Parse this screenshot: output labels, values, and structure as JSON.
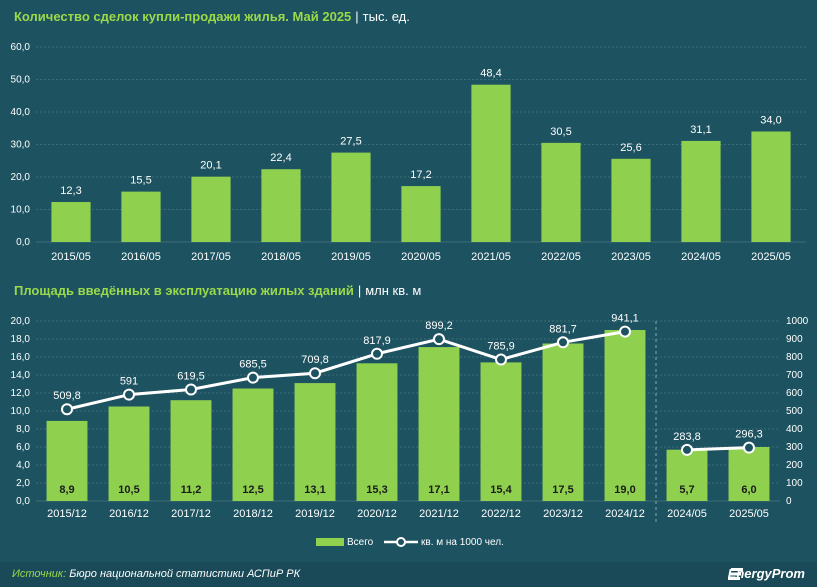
{
  "chart1_title": {
    "main": "Количество сделок купли-продажи жилья. Май 2025",
    "sep": "|",
    "unit": "тыс. ед."
  },
  "chart2_title": {
    "main": "Площадь введённых в эксплуатацию жилых зданий",
    "sep": "|",
    "unit": "млн кв. м"
  },
  "source": {
    "label": "Источник:",
    "text": "Бюро национальной статистики АСПиР РК"
  },
  "brand": "EnergyProm",
  "colors": {
    "background": "#1d5260",
    "bar": "#8fd14f",
    "title_accent": "#9ad94a",
    "line": "#ffffff"
  },
  "chart_data": [
    {
      "type": "bar",
      "categories": [
        "2015/05",
        "2016/05",
        "2017/05",
        "2018/05",
        "2019/05",
        "2020/05",
        "2021/05",
        "2022/05",
        "2023/05",
        "2024/05",
        "2025/05"
      ],
      "values": [
        12.3,
        15.5,
        20.1,
        22.4,
        27.5,
        17.2,
        48.4,
        30.5,
        25.6,
        31.1,
        34.0
      ],
      "value_labels": [
        "12,3",
        "15,5",
        "20,1",
        "22,4",
        "27,5",
        "17,2",
        "48,4",
        "30,5",
        "25,6",
        "31,1",
        "34,0"
      ],
      "ylim": [
        0,
        60
      ],
      "yticks": [
        "0,0",
        "10,0",
        "20,0",
        "30,0",
        "40,0",
        "50,0",
        "60,0"
      ],
      "grid": true
    },
    {
      "type": "bar",
      "categories": [
        "2015/12",
        "2016/12",
        "2017/12",
        "2018/12",
        "2019/12",
        "2020/12",
        "2021/12",
        "2022/12",
        "2023/12",
        "2024/12",
        "2024/05",
        "2025/05"
      ],
      "series": [
        {
          "name": "Всего",
          "type": "bar",
          "values": [
            8.9,
            10.5,
            11.2,
            12.5,
            13.1,
            15.3,
            17.1,
            15.4,
            17.5,
            19.0,
            5.7,
            6.0
          ],
          "value_labels": [
            "8,9",
            "10,5",
            "11,2",
            "12,5",
            "13,1",
            "15,3",
            "17,1",
            "15,4",
            "17,5",
            "19,0",
            "5,7",
            "6,0"
          ]
        },
        {
          "name": "кв. м на 1000 чел.",
          "type": "line",
          "axis": "right",
          "values": [
            509.8,
            591,
            619.5,
            685.5,
            709.8,
            817.9,
            899.2,
            785.9,
            881.7,
            941.1,
            283.8,
            296.3
          ],
          "value_labels": [
            "509,8",
            "591",
            "619,5",
            "685,5",
            "709,8",
            "817,9",
            "899,2",
            "785,9",
            "881,7",
            "941,1",
            "283,8",
            "296,3"
          ]
        }
      ],
      "ylim": [
        0,
        20
      ],
      "yticks": [
        "0,0",
        "2,0",
        "4,0",
        "6,0",
        "8,0",
        "10,0",
        "12,0",
        "14,0",
        "16,0",
        "18,0",
        "20,0"
      ],
      "y2lim": [
        0,
        1000
      ],
      "y2ticks": [
        "0",
        "100",
        "200",
        "300",
        "400",
        "500",
        "600",
        "700",
        "800",
        "900",
        "1000"
      ],
      "grid": true,
      "legend": "bottom-center"
    }
  ]
}
